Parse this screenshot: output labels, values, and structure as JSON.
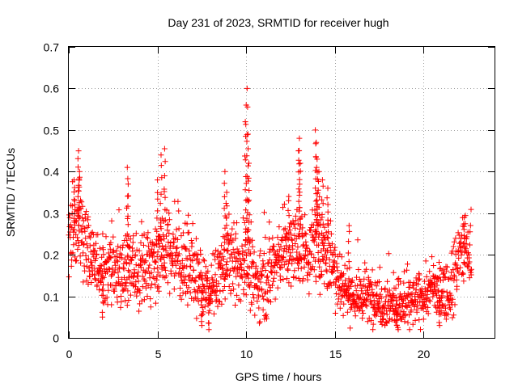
{
  "chart_data": {
    "type": "scatter",
    "title": "Day 231 of 2023, SRMTID for receiver hugh",
    "xlabel": "GPS time / hours",
    "ylabel": "SRMTID / TECUs",
    "xlim": [
      0,
      24
    ],
    "ylim": [
      0,
      0.7
    ],
    "xticks": [
      0,
      5,
      10,
      15,
      20
    ],
    "xtick_labels": [
      "0",
      "5",
      "10",
      "15",
      "20"
    ],
    "yticks": [
      0,
      0.1,
      0.2,
      0.3,
      0.4,
      0.5,
      0.6,
      0.7
    ],
    "ytick_labels": [
      "0",
      "0.1",
      "0.2",
      "0.3",
      "0.4",
      "0.5",
      "0.6",
      "0.7"
    ],
    "grid": true,
    "marker": "plus",
    "color": "#ff0000",
    "x_end": 22.7,
    "series": [
      {
        "name": "SRMTID",
        "profile": [
          {
            "x": 0.0,
            "y": 0.24
          },
          {
            "x": 0.5,
            "y": 0.27
          },
          {
            "x": 1.0,
            "y": 0.22
          },
          {
            "x": 1.5,
            "y": 0.19
          },
          {
            "x": 2.0,
            "y": 0.17
          },
          {
            "x": 2.5,
            "y": 0.16
          },
          {
            "x": 3.0,
            "y": 0.15
          },
          {
            "x": 3.5,
            "y": 0.17
          },
          {
            "x": 4.0,
            "y": 0.15
          },
          {
            "x": 4.5,
            "y": 0.18
          },
          {
            "x": 5.0,
            "y": 0.19
          },
          {
            "x": 5.5,
            "y": 0.22
          },
          {
            "x": 6.0,
            "y": 0.2
          },
          {
            "x": 6.5,
            "y": 0.18
          },
          {
            "x": 7.0,
            "y": 0.16
          },
          {
            "x": 7.5,
            "y": 0.12
          },
          {
            "x": 8.0,
            "y": 0.11
          },
          {
            "x": 8.5,
            "y": 0.15
          },
          {
            "x": 9.0,
            "y": 0.2
          },
          {
            "x": 9.5,
            "y": 0.16
          },
          {
            "x": 10.0,
            "y": 0.19
          },
          {
            "x": 10.5,
            "y": 0.13
          },
          {
            "x": 11.0,
            "y": 0.14
          },
          {
            "x": 11.5,
            "y": 0.17
          },
          {
            "x": 12.0,
            "y": 0.21
          },
          {
            "x": 12.5,
            "y": 0.2
          },
          {
            "x": 13.0,
            "y": 0.22
          },
          {
            "x": 13.5,
            "y": 0.2
          },
          {
            "x": 14.0,
            "y": 0.23
          },
          {
            "x": 14.5,
            "y": 0.2
          },
          {
            "x": 15.0,
            "y": 0.17
          },
          {
            "x": 15.5,
            "y": 0.12
          },
          {
            "x": 16.0,
            "y": 0.1
          },
          {
            "x": 16.5,
            "y": 0.095
          },
          {
            "x": 17.0,
            "y": 0.1
          },
          {
            "x": 17.5,
            "y": 0.09
          },
          {
            "x": 18.0,
            "y": 0.085
          },
          {
            "x": 18.5,
            "y": 0.08
          },
          {
            "x": 19.0,
            "y": 0.08
          },
          {
            "x": 19.5,
            "y": 0.085
          },
          {
            "x": 20.0,
            "y": 0.1
          },
          {
            "x": 20.5,
            "y": 0.12
          },
          {
            "x": 21.0,
            "y": 0.11
          },
          {
            "x": 21.5,
            "y": 0.12
          },
          {
            "x": 22.0,
            "y": 0.2
          },
          {
            "x": 22.5,
            "y": 0.21
          },
          {
            "x": 22.7,
            "y": 0.19
          }
        ],
        "spread": 0.045,
        "spikes": [
          {
            "x": 0.3,
            "y": 0.38
          },
          {
            "x": 0.55,
            "y": 0.45
          },
          {
            "x": 0.6,
            "y": 0.4
          },
          {
            "x": 3.3,
            "y": 0.41
          },
          {
            "x": 3.35,
            "y": 0.37
          },
          {
            "x": 5.2,
            "y": 0.44
          },
          {
            "x": 5.4,
            "y": 0.455
          },
          {
            "x": 5.0,
            "y": 0.38
          },
          {
            "x": 8.8,
            "y": 0.4
          },
          {
            "x": 8.9,
            "y": 0.35
          },
          {
            "x": 10.05,
            "y": 0.6
          },
          {
            "x": 10.0,
            "y": 0.56
          },
          {
            "x": 9.95,
            "y": 0.52
          },
          {
            "x": 10.1,
            "y": 0.49
          },
          {
            "x": 10.15,
            "y": 0.42
          },
          {
            "x": 12.4,
            "y": 0.34
          },
          {
            "x": 13.0,
            "y": 0.48
          },
          {
            "x": 12.95,
            "y": 0.45
          },
          {
            "x": 13.05,
            "y": 0.42
          },
          {
            "x": 13.9,
            "y": 0.5
          },
          {
            "x": 13.95,
            "y": 0.47
          },
          {
            "x": 14.0,
            "y": 0.43
          },
          {
            "x": 14.1,
            "y": 0.4
          },
          {
            "x": 14.3,
            "y": 0.38
          },
          {
            "x": 14.6,
            "y": 0.36
          },
          {
            "x": 15.8,
            "y": 0.27
          },
          {
            "x": 22.3,
            "y": 0.29
          },
          {
            "x": 7.9,
            "y": 0.02
          },
          {
            "x": 7.5,
            "y": 0.03
          },
          {
            "x": 18.5,
            "y": 0.03
          },
          {
            "x": 20.9,
            "y": 0.03
          },
          {
            "x": 1.9,
            "y": 0.05
          }
        ],
        "n_points": 1700
      }
    ]
  }
}
